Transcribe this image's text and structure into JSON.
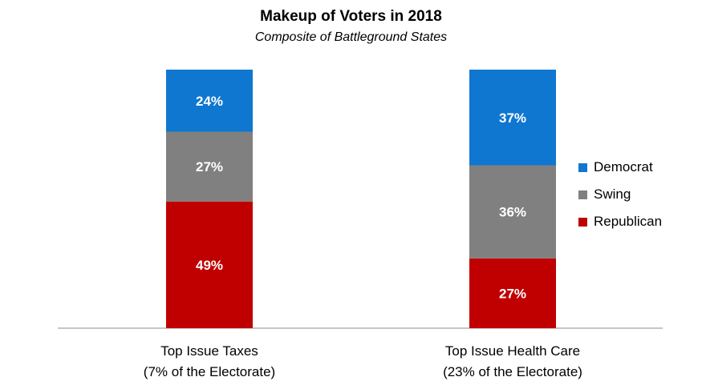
{
  "chart_data": {
    "type": "bar",
    "stacked": true,
    "normalized": true,
    "title": "Makeup of Voters in 2018",
    "subtitle": "Composite of Battleground States",
    "categories": [
      {
        "line1": "Top Issue Taxes",
        "line2": "(7% of the Electorate)"
      },
      {
        "line1": "Top Issue Health Care",
        "line2": "(23% of the Electorate)"
      }
    ],
    "series": [
      {
        "name": "Republican",
        "color": "#c00000",
        "values": [
          49,
          27
        ],
        "labels": [
          "49%",
          "27%"
        ]
      },
      {
        "name": "Swing",
        "color": "#808080",
        "values": [
          27,
          36
        ],
        "labels": [
          "27%",
          "36%"
        ]
      },
      {
        "name": "Democrat",
        "color": "#0f77d0",
        "values": [
          24,
          37
        ],
        "labels": [
          "24%",
          "37%"
        ]
      }
    ],
    "legend": {
      "position": "right",
      "entries": [
        {
          "name": "Democrat",
          "color": "#0f77d0"
        },
        {
          "name": "Swing",
          "color": "#808080"
        },
        {
          "name": "Republican",
          "color": "#c00000"
        }
      ]
    },
    "ylim": [
      0,
      100
    ],
    "grid": false
  }
}
